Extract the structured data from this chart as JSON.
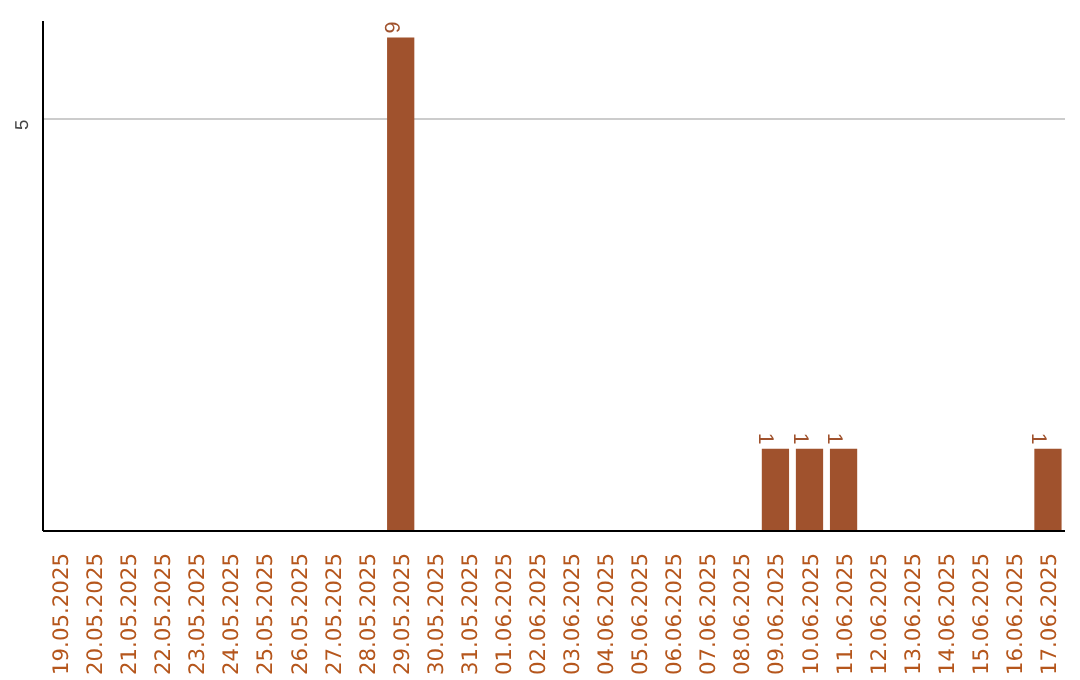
{
  "chart_data": {
    "type": "bar",
    "categories": [
      "19.05.2025",
      "20.05.2025",
      "21.05.2025",
      "22.05.2025",
      "23.05.2025",
      "24.05.2025",
      "25.05.2025",
      "26.05.2025",
      "27.05.2025",
      "28.05.2025",
      "29.05.2025",
      "30.05.2025",
      "31.05.2025",
      "01.06.2025",
      "02.06.2025",
      "03.06.2025",
      "04.06.2025",
      "05.06.2025",
      "06.06.2025",
      "07.06.2025",
      "08.06.2025",
      "09.06.2025",
      "10.06.2025",
      "11.06.2025",
      "12.06.2025",
      "13.06.2025",
      "14.06.2025",
      "15.06.2025",
      "16.06.2025",
      "17.06.2025"
    ],
    "values": [
      0,
      0,
      0,
      0,
      0,
      0,
      0,
      0,
      0,
      0,
      6,
      0,
      0,
      0,
      0,
      0,
      0,
      0,
      0,
      0,
      0,
      1,
      1,
      1,
      0,
      0,
      0,
      0,
      0,
      1
    ],
    "value_labels": [
      null,
      null,
      null,
      null,
      null,
      null,
      null,
      null,
      null,
      null,
      "6",
      null,
      null,
      null,
      null,
      null,
      null,
      null,
      null,
      null,
      null,
      "1",
      "1",
      "1",
      null,
      null,
      null,
      null,
      null,
      "1"
    ],
    "color": "#a0522d",
    "ylim": [
      0,
      6.2
    ],
    "yticks": [
      5
    ],
    "grid": "y"
  }
}
